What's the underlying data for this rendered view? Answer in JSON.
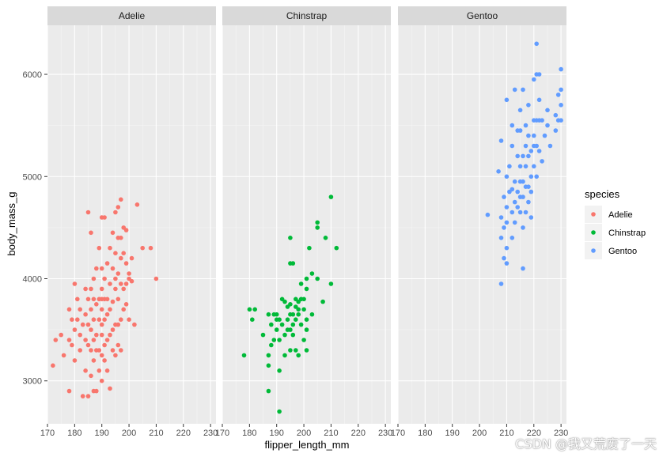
{
  "chart_data": {
    "type": "scatter",
    "facets": [
      "Adelie",
      "Chinstrap",
      "Gentoo"
    ],
    "xlabel": "flipper_length_mm",
    "ylabel": "body_mass_g",
    "xlim": [
      170,
      232
    ],
    "ylim": [
      2580,
      6480
    ],
    "x_ticks": [
      170,
      180,
      190,
      200,
      210,
      220,
      230
    ],
    "y_ticks": [
      3000,
      4000,
      5000,
      6000
    ],
    "grid": true,
    "legend": {
      "title": "species",
      "placement": "right",
      "entries": [
        {
          "label": "Adelie",
          "color": "#F8766D"
        },
        {
          "label": "Chinstrap",
          "color": "#00BA38"
        },
        {
          "label": "Gentoo",
          "color": "#619CFF"
        }
      ]
    },
    "series": [
      {
        "name": "Adelie",
        "color": "#F8766D",
        "points": [
          [
            172,
            3150
          ],
          [
            173,
            3400
          ],
          [
            175,
            3450
          ],
          [
            176,
            3250
          ],
          [
            178,
            2900
          ],
          [
            178,
            3400
          ],
          [
            178,
            3700
          ],
          [
            179,
            3350
          ],
          [
            179,
            3600
          ],
          [
            180,
            3200
          ],
          [
            180,
            3500
          ],
          [
            180,
            3950
          ],
          [
            181,
            3600
          ],
          [
            181,
            3800
          ],
          [
            182,
            3300
          ],
          [
            182,
            3450
          ],
          [
            182,
            3700
          ],
          [
            183,
            2850
          ],
          [
            183,
            3550
          ],
          [
            184,
            3100
          ],
          [
            184,
            3400
          ],
          [
            184,
            3650
          ],
          [
            184,
            3900
          ],
          [
            185,
            2850
          ],
          [
            185,
            3350
          ],
          [
            185,
            3550
          ],
          [
            185,
            3800
          ],
          [
            185,
            4650
          ],
          [
            186,
            3050
          ],
          [
            186,
            3300
          ],
          [
            186,
            3500
          ],
          [
            186,
            3700
          ],
          [
            186,
            3900
          ],
          [
            186,
            4450
          ],
          [
            187,
            2900
          ],
          [
            187,
            3200
          ],
          [
            187,
            3400
          ],
          [
            187,
            3600
          ],
          [
            187,
            3800
          ],
          [
            187,
            4000
          ],
          [
            188,
            2900
          ],
          [
            188,
            3300
          ],
          [
            188,
            3450
          ],
          [
            188,
            3750
          ],
          [
            188,
            4100
          ],
          [
            189,
            3100
          ],
          [
            189,
            3300
          ],
          [
            189,
            3600
          ],
          [
            189,
            3800
          ],
          [
            189,
            4300
          ],
          [
            190,
            3000
          ],
          [
            190,
            3250
          ],
          [
            190,
            3450
          ],
          [
            190,
            3550
          ],
          [
            190,
            3700
          ],
          [
            190,
            3800
          ],
          [
            190,
            3900
          ],
          [
            190,
            4100
          ],
          [
            190,
            4600
          ],
          [
            191,
            3200
          ],
          [
            191,
            3350
          ],
          [
            191,
            3600
          ],
          [
            191,
            3800
          ],
          [
            191,
            4000
          ],
          [
            191,
            4600
          ],
          [
            192,
            3100
          ],
          [
            192,
            3400
          ],
          [
            192,
            3650
          ],
          [
            192,
            3800
          ],
          [
            192,
            4150
          ],
          [
            193,
            2925
          ],
          [
            193,
            3450
          ],
          [
            193,
            3700
          ],
          [
            193,
            3950
          ],
          [
            193,
            4300
          ],
          [
            194,
            3300
          ],
          [
            194,
            3500
          ],
          [
            194,
            3775
          ],
          [
            194,
            4100
          ],
          [
            194,
            4450
          ],
          [
            195,
            3250
          ],
          [
            195,
            3550
          ],
          [
            195,
            3900
          ],
          [
            195,
            4000
          ],
          [
            195,
            4250
          ],
          [
            195,
            4650
          ],
          [
            196,
            3350
          ],
          [
            196,
            3550
          ],
          [
            196,
            3800
          ],
          [
            196,
            4050
          ],
          [
            196,
            4400
          ],
          [
            196,
            4700
          ],
          [
            197,
            3300
          ],
          [
            197,
            3600
          ],
          [
            197,
            3950
          ],
          [
            197,
            4200
          ],
          [
            197,
            4400
          ],
          [
            197,
            4775
          ],
          [
            198,
            3700
          ],
          [
            198,
            3900
          ],
          [
            198,
            4250
          ],
          [
            198,
            4500
          ],
          [
            199,
            3750
          ],
          [
            199,
            3950
          ],
          [
            199,
            4150
          ],
          [
            199,
            4475
          ],
          [
            200,
            3600
          ],
          [
            200,
            4000
          ],
          [
            200,
            4050
          ],
          [
            201,
            3975
          ],
          [
            201,
            4200
          ],
          [
            202,
            3550
          ],
          [
            203,
            4725
          ],
          [
            205,
            4300
          ],
          [
            208,
            4300
          ],
          [
            210,
            4000
          ]
        ]
      },
      {
        "name": "Chinstrap",
        "color": "#00BA38",
        "points": [
          [
            178,
            3250
          ],
          [
            180,
            3700
          ],
          [
            181,
            3600
          ],
          [
            182,
            3700
          ],
          [
            185,
            3450
          ],
          [
            187,
            2900
          ],
          [
            187,
            3150
          ],
          [
            187,
            3250
          ],
          [
            187,
            3650
          ],
          [
            188,
            3350
          ],
          [
            188,
            3550
          ],
          [
            189,
            3400
          ],
          [
            189,
            3650
          ],
          [
            190,
            3500
          ],
          [
            190,
            3600
          ],
          [
            190,
            3650
          ],
          [
            191,
            2700
          ],
          [
            191,
            3100
          ],
          [
            191,
            3400
          ],
          [
            191,
            3600
          ],
          [
            192,
            3550
          ],
          [
            192,
            3800
          ],
          [
            193,
            3250
          ],
          [
            193,
            3450
          ],
          [
            193,
            3775
          ],
          [
            194,
            3500
          ],
          [
            194,
            3600
          ],
          [
            194,
            3725
          ],
          [
            195,
            3300
          ],
          [
            195,
            3500
          ],
          [
            195,
            3650
          ],
          [
            195,
            3750
          ],
          [
            195,
            4150
          ],
          [
            195,
            4400
          ],
          [
            196,
            3450
          ],
          [
            196,
            3550
          ],
          [
            196,
            3650
          ],
          [
            196,
            4150
          ],
          [
            197,
            3300
          ],
          [
            197,
            3600
          ],
          [
            197,
            3725
          ],
          [
            197,
            3800
          ],
          [
            198,
            3250
          ],
          [
            198,
            3650
          ],
          [
            198,
            3700
          ],
          [
            198,
            3775
          ],
          [
            199,
            3550
          ],
          [
            199,
            3800
          ],
          [
            199,
            3950
          ],
          [
            200,
            3400
          ],
          [
            200,
            3700
          ],
          [
            200,
            3800
          ],
          [
            201,
            3300
          ],
          [
            201,
            3500
          ],
          [
            201,
            3600
          ],
          [
            201,
            3900
          ],
          [
            201,
            4000
          ],
          [
            202,
            4300
          ],
          [
            203,
            3650
          ],
          [
            203,
            4050
          ],
          [
            205,
            4000
          ],
          [
            205,
            4500
          ],
          [
            205,
            4550
          ],
          [
            207,
            3775
          ],
          [
            208,
            4400
          ],
          [
            210,
            3950
          ],
          [
            210,
            4800
          ],
          [
            212,
            4300
          ]
        ]
      },
      {
        "name": "Gentoo",
        "color": "#619CFF",
        "points": [
          [
            203,
            4625
          ],
          [
            207,
            5050
          ],
          [
            208,
            3950
          ],
          [
            208,
            4400
          ],
          [
            208,
            4600
          ],
          [
            208,
            5350
          ],
          [
            209,
            4200
          ],
          [
            209,
            4500
          ],
          [
            209,
            4800
          ],
          [
            210,
            4150
          ],
          [
            210,
            4300
          ],
          [
            210,
            4550
          ],
          [
            210,
            4700
          ],
          [
            210,
            5000
          ],
          [
            210,
            5750
          ],
          [
            211,
            4850
          ],
          [
            211,
            5100
          ],
          [
            212,
            4400
          ],
          [
            212,
            4650
          ],
          [
            212,
            4875
          ],
          [
            212,
            5300
          ],
          [
            212,
            5500
          ],
          [
            213,
            4550
          ],
          [
            213,
            4750
          ],
          [
            213,
            4950
          ],
          [
            213,
            5850
          ],
          [
            214,
            4700
          ],
          [
            214,
            4850
          ],
          [
            214,
            5200
          ],
          [
            214,
            5450
          ],
          [
            215,
            4650
          ],
          [
            215,
            4800
          ],
          [
            215,
            4950
          ],
          [
            215,
            5100
          ],
          [
            215,
            5450
          ],
          [
            215,
            5650
          ],
          [
            216,
            4100
          ],
          [
            216,
            4500
          ],
          [
            216,
            4800
          ],
          [
            216,
            4950
          ],
          [
            216,
            5200
          ],
          [
            216,
            5850
          ],
          [
            217,
            4650
          ],
          [
            217,
            4900
          ],
          [
            217,
            5100
          ],
          [
            217,
            5300
          ],
          [
            217,
            5500
          ],
          [
            218,
            4750
          ],
          [
            218,
            4900
          ],
          [
            218,
            5200
          ],
          [
            218,
            5400
          ],
          [
            218,
            5700
          ],
          [
            219,
            4600
          ],
          [
            219,
            4850
          ],
          [
            219,
            5000
          ],
          [
            219,
            5250
          ],
          [
            220,
            5100
          ],
          [
            220,
            5300
          ],
          [
            220,
            5400
          ],
          [
            220,
            5550
          ],
          [
            220,
            5950
          ],
          [
            221,
            5000
          ],
          [
            221,
            5300
          ],
          [
            221,
            5550
          ],
          [
            221,
            6000
          ],
          [
            221,
            6300
          ],
          [
            222,
            5250
          ],
          [
            222,
            5550
          ],
          [
            222,
            5750
          ],
          [
            222,
            6000
          ],
          [
            223,
            5150
          ],
          [
            223,
            5550
          ],
          [
            224,
            5400
          ],
          [
            225,
            5500
          ],
          [
            225,
            5650
          ],
          [
            226,
            5300
          ],
          [
            228,
            5450
          ],
          [
            228,
            5600
          ],
          [
            229,
            5550
          ],
          [
            229,
            5800
          ],
          [
            230,
            5550
          ],
          [
            230,
            5700
          ],
          [
            230,
            5850
          ],
          [
            230,
            6050
          ]
        ]
      }
    ]
  },
  "watermark": "CSDN @我又荒废了一天"
}
